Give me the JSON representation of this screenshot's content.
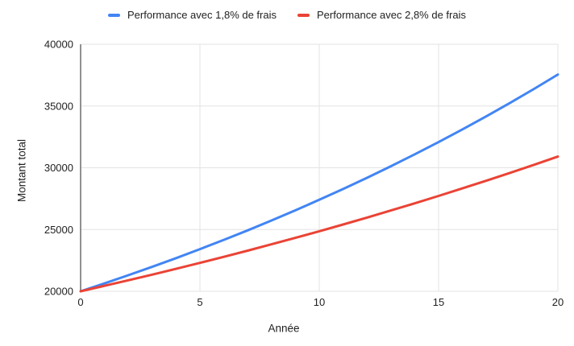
{
  "chart_data": {
    "type": "line",
    "title": "",
    "xlabel": "Année",
    "ylabel": "Montant total",
    "x": [
      0,
      1,
      2,
      3,
      4,
      5,
      6,
      7,
      8,
      9,
      10,
      11,
      12,
      13,
      14,
      15,
      16,
      17,
      18,
      19,
      20
    ],
    "series": [
      {
        "name": "Performance avec 1,8% de frais",
        "color": "#4285F4",
        "values": [
          20000,
          20640,
          21300,
          21982,
          22686,
          23411,
          24161,
          24934,
          25732,
          26555,
          27405,
          28282,
          29187,
          30121,
          31085,
          32079,
          33106,
          34165,
          35259,
          36387,
          37551
        ]
      },
      {
        "name": "Performance avec 2,8% de frais",
        "color": "#EA4335",
        "values": [
          20000,
          20440,
          20890,
          21349,
          21819,
          22299,
          22790,
          23291,
          23803,
          24327,
          24862,
          25409,
          25968,
          26539,
          27123,
          27720,
          28330,
          28953,
          29590,
          30241,
          30906
        ]
      }
    ],
    "xlim": [
      0,
      20
    ],
    "ylim": [
      20000,
      40000
    ],
    "x_ticks": [
      0,
      5,
      10,
      15,
      20
    ],
    "y_ticks": [
      20000,
      25000,
      30000,
      35000,
      40000
    ],
    "grid": true,
    "legend_position": "top",
    "colors": {
      "grid": "#e3e3e3",
      "axis_line": "#757575",
      "text": "#1f1f1f",
      "background": "#ffffff"
    }
  }
}
